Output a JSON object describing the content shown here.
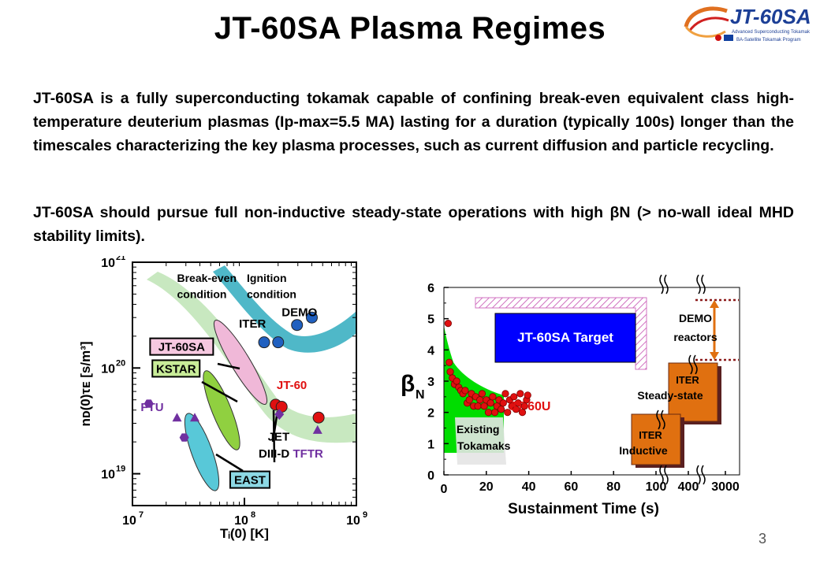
{
  "slide": {
    "title": "JT-60SA Plasma Regimes",
    "paragraphs": [
      "JT-60SA is a fully superconducting tokamak capable of confining break-even equivalent class high-temperature deuterium plasmas (Ip-max=5.5 MA) lasting for a duration (typically 100s) longer than the timescales characterizing the key plasma processes, such as current diffusion and particle recycling.",
      "JT-60SA should pursue full non-inductive steady-state operations with high βN (> no-wall ideal MHD stability limits)."
    ],
    "page_number": "3"
  },
  "logo": {
    "text": "JT-60SA",
    "tagline1": "Advanced Superconducting Tokamak",
    "tagline2": "BA-Satellite Tokamak Program"
  },
  "colors": {
    "jt60sa_target": "#0000ff",
    "jt60u": "#e01010",
    "iter_box": "#e07010",
    "existing_band": "#00dd00",
    "iter_band": "#4fb8c8",
    "break_even_band": "#c8e8c0",
    "jt60sa_region": "#f0b8d8",
    "kstar_region": "#90d040",
    "east_region": "#58c8d8",
    "demo_arrow": "#e07010",
    "hatch": "#d070c0"
  },
  "chart_data": [
    {
      "type": "scatter",
      "xlabel": "Tᵢ(0) [K]",
      "ylabel": "nᴅ(0)τᴇ [s/m³]",
      "x_scale": "log",
      "y_scale": "log",
      "xlim": [
        10000000.0,
        1000000000.0
      ],
      "ylim": [
        5000000000000000000,
        1e+21
      ],
      "x_ticks": [
        {
          "value": 10000000.0,
          "base": "10",
          "exp": "7"
        },
        {
          "value": 100000000.0,
          "base": "10",
          "exp": "8"
        },
        {
          "value": 1000000000.0,
          "base": "10",
          "exp": "9"
        }
      ],
      "y_ticks": [
        {
          "value": 1e+19,
          "base": "10",
          "exp": "19"
        },
        {
          "value": 1e+20,
          "base": "10",
          "exp": "20"
        },
        {
          "value": 1e+21,
          "base": "10",
          "exp": "21"
        }
      ],
      "annotations": [
        {
          "text": "Break-even",
          "x": 25000000.0,
          "y": 6.5e+20
        },
        {
          "text": "condition",
          "x": 25000000.0,
          "y": 4.6e+20
        },
        {
          "text": "Ignition",
          "x": 105000000.0,
          "y": 6.5e+20
        },
        {
          "text": "condition",
          "x": 105000000.0,
          "y": 4.6e+20
        }
      ],
      "labels": [
        {
          "text": "DEMO",
          "x": 310000000.0,
          "y": 3.1e+20,
          "color": "#000000",
          "boxed": false
        },
        {
          "text": "ITER",
          "x": 118000000.0,
          "y": 2.4e+20,
          "color": "#000000",
          "boxed": false
        },
        {
          "text": "JT-60SA",
          "x": 27500000.0,
          "y": 1.45e+20,
          "color": "#000000",
          "boxed": true
        },
        {
          "text": "KSTAR",
          "x": 24500000.0,
          "y": 9e+19,
          "color": "#000000",
          "boxed": true
        },
        {
          "text": "FTU",
          "x": 15000000.0,
          "y": 3.9e+19,
          "color": "#7030a0",
          "boxed": false
        },
        {
          "text": "JT-60",
          "x": 265000000.0,
          "y": 6.3e+19,
          "color": "#e01010",
          "boxed": false
        },
        {
          "text": "JET",
          "x": 202000000.0,
          "y": 2.05e+19,
          "color": "#000000",
          "boxed": false
        },
        {
          "text": "DIII-D",
          "x": 184000000.0,
          "y": 1.42e+19,
          "color": "#000000",
          "boxed": false
        },
        {
          "text": "TFTR",
          "x": 370000000.0,
          "y": 1.42e+19,
          "color": "#7030a0",
          "boxed": false
        },
        {
          "text": "EAST",
          "x": 112000000.0,
          "y": 8e+18,
          "color": "#000000",
          "boxed": true
        }
      ],
      "points": [
        {
          "name": "DEMO",
          "x": 400000000.0,
          "y": 3e+20,
          "marker": "circle",
          "color": "#2060c0"
        },
        {
          "name": "DEMO",
          "x": 295000000.0,
          "y": 2.55e+20,
          "marker": "circle",
          "color": "#2060c0"
        },
        {
          "name": "ITER",
          "x": 150000000.0,
          "y": 1.75e+20,
          "marker": "circle",
          "color": "#2060c0"
        },
        {
          "name": "ITER",
          "x": 200000000.0,
          "y": 1.75e+20,
          "marker": "circle",
          "color": "#2060c0"
        },
        {
          "name": "JT-60",
          "x": 190000000.0,
          "y": 4.5e+19,
          "marker": "circle",
          "color": "#e01010"
        },
        {
          "name": "JT-60",
          "x": 215000000.0,
          "y": 4.3e+19,
          "marker": "circle",
          "color": "#e01010"
        },
        {
          "name": "JT-60",
          "x": 460000000.0,
          "y": 3.4e+19,
          "marker": "circle",
          "color": "#e01010"
        },
        {
          "name": "JET",
          "x": 205000000.0,
          "y": 3.65e+19,
          "marker": "diamond",
          "color": "#7030a0"
        },
        {
          "name": "TFTR",
          "x": 450000000.0,
          "y": 2.6e+19,
          "marker": "triangle",
          "color": "#7030a0"
        },
        {
          "name": "FTU",
          "x": 14000000.0,
          "y": 4.6e+19,
          "marker": "hexagon",
          "color": "#7030a0"
        },
        {
          "name": "FTU",
          "x": 25000000.0,
          "y": 3.4e+19,
          "marker": "triangle",
          "color": "#7030a0"
        },
        {
          "name": "FTU",
          "x": 29000000.0,
          "y": 2.2e+19,
          "marker": "hexagon",
          "color": "#7030a0"
        },
        {
          "name": "FTU",
          "x": 36000000.0,
          "y": 3.4e+19,
          "marker": "triangle",
          "color": "#7030a0"
        }
      ]
    },
    {
      "type": "scatter",
      "xlabel": "Sustainment Time (s)",
      "ylabel": "β",
      "ylabel_sub": "N",
      "ylim": [
        0,
        6
      ],
      "y_ticks": [
        0,
        1,
        2,
        3,
        4,
        5,
        6
      ],
      "x_ticks": [
        "0",
        "20",
        "40",
        "60",
        "80",
        "100",
        "400",
        "3000"
      ],
      "x_axis_note": "broken axis: 0–100 linear, then 400 and 3000",
      "regions": [
        {
          "label": "JT-60SA Target",
          "x": [
            0,
            100
          ],
          "y": [
            3.5,
            5.0
          ]
        },
        {
          "label": "DEMO",
          "label2": "reactors",
          "y": [
            3.5,
            5.5
          ]
        },
        {
          "label": "ITER",
          "label2": "Steady-state",
          "y": [
            1.7,
            3.5
          ]
        },
        {
          "label": "ITER",
          "label2": "Inductive",
          "y": [
            0.5,
            2.2
          ]
        }
      ],
      "series": [
        {
          "name": "JT-60U",
          "color": "#e01010",
          "points": [
            {
              "x": 2,
              "y": 4.85
            },
            {
              "x": 2.5,
              "y": 3.6
            },
            {
              "x": 3,
              "y": 3.3
            },
            {
              "x": 4,
              "y": 3.1
            },
            {
              "x": 5,
              "y": 2.9
            },
            {
              "x": 6,
              "y": 3.0
            },
            {
              "x": 7,
              "y": 2.8
            },
            {
              "x": 8,
              "y": 2.7
            },
            {
              "x": 9,
              "y": 2.6
            },
            {
              "x": 10,
              "y": 2.7
            },
            {
              "x": 11,
              "y": 2.3
            },
            {
              "x": 12,
              "y": 2.4
            },
            {
              "x": 13,
              "y": 2.6
            },
            {
              "x": 14,
              "y": 2.2
            },
            {
              "x": 15,
              "y": 2.5
            },
            {
              "x": 16,
              "y": 2.2
            },
            {
              "x": 17,
              "y": 2.4
            },
            {
              "x": 18,
              "y": 2.6
            },
            {
              "x": 19,
              "y": 2.2
            },
            {
              "x": 20,
              "y": 2.4
            },
            {
              "x": 21,
              "y": 2.0
            },
            {
              "x": 22,
              "y": 2.3
            },
            {
              "x": 23,
              "y": 2.5
            },
            {
              "x": 24,
              "y": 2.0
            },
            {
              "x": 25,
              "y": 2.2
            },
            {
              "x": 26,
              "y": 2.4
            },
            {
              "x": 27,
              "y": 2.1
            },
            {
              "x": 28,
              "y": 2.3
            },
            {
              "x": 29,
              "y": 2.6
            },
            {
              "x": 30,
              "y": 2.0
            },
            {
              "x": 31,
              "y": 2.4
            },
            {
              "x": 32,
              "y": 2.2
            },
            {
              "x": 33,
              "y": 2.5
            },
            {
              "x": 34,
              "y": 2.1
            },
            {
              "x": 35,
              "y": 2.3
            },
            {
              "x": 36,
              "y": 2.6
            },
            {
              "x": 37,
              "y": 2.0
            },
            {
              "x": 38,
              "y": 2.2
            },
            {
              "x": 39,
              "y": 2.4
            },
            {
              "x": 39.5,
              "y": 2.55
            }
          ]
        }
      ],
      "annotations": [
        {
          "text": "JT-60U",
          "color": "#e01010"
        },
        {
          "text": "Existing",
          "color": "#000000"
        },
        {
          "text": "Tokamaks",
          "color": "#000000"
        }
      ]
    }
  ]
}
